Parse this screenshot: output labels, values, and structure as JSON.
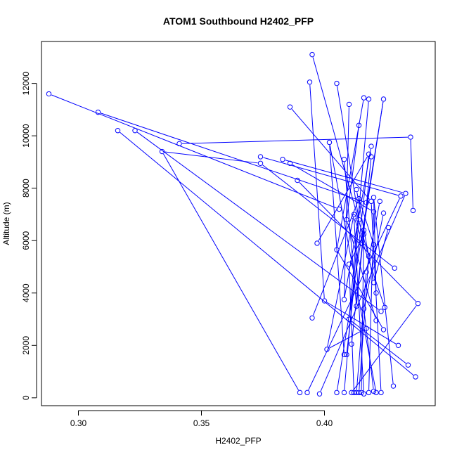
{
  "chart_data": {
    "type": "line",
    "title": "ATOM1 Southbound H2402_PFP",
    "xlabel": "H2402_PFP",
    "ylabel": "Altitude (m)",
    "xlim": [
      0.285,
      0.445
    ],
    "ylim": [
      -300,
      13600
    ],
    "xticks": [
      0.3,
      0.35,
      0.4
    ],
    "xtick_labels": [
      "0.30",
      "0.35",
      "0.40"
    ],
    "yticks": [
      0,
      2000,
      4000,
      6000,
      8000,
      10000,
      12000
    ],
    "ytick_labels": [
      "0",
      "2000",
      "4000",
      "6000",
      "8000",
      "10000",
      "12000"
    ],
    "grid": false,
    "legend": "none",
    "line_color": "#0000ff",
    "marker": "open-circle",
    "series": [
      {
        "x": [
          0.39,
          0.334,
          0.374,
          0.4285
        ],
        "y": [
          200,
          9400,
          8950,
          4950
        ]
      },
      {
        "x": [
          0.288,
          0.406
        ],
        "y": [
          11600,
          7200
        ]
      },
      {
        "x": [
          0.308,
          0.417
        ],
        "y": [
          10900,
          7450
        ]
      },
      {
        "x": [
          0.316,
          0.437
        ],
        "y": [
          10200,
          800
        ]
      },
      {
        "x": [
          0.323,
          0.423
        ],
        "y": [
          10200,
          3300
        ]
      },
      {
        "x": [
          0.341,
          0.435,
          0.436
        ],
        "y": [
          9700,
          9950,
          7150
        ]
      },
      {
        "x": [
          0.374,
          0.431,
          0.393
        ],
        "y": [
          9200,
          7700,
          200
        ]
      },
      {
        "x": [
          0.383,
          0.433,
          0.398
        ],
        "y": [
          9100,
          7800,
          150
        ]
      },
      {
        "x": [
          0.386,
          0.42,
          0.418
        ],
        "y": [
          8950,
          7100,
          200
        ]
      },
      {
        "x": [
          0.386,
          0.419,
          0.423
        ],
        "y": [
          11100,
          7500,
          200
        ]
      },
      {
        "x": [
          0.389,
          0.438,
          0.411
        ],
        "y": [
          8300,
          3600,
          200
        ]
      },
      {
        "x": [
          0.395,
          0.418,
          0.414
        ],
        "y": [
          13100,
          5400,
          200
        ]
      },
      {
        "x": [
          0.394,
          0.4,
          0.43
        ],
        "y": [
          12050,
          3700,
          2000
        ]
      },
      {
        "x": [
          0.405,
          0.414,
          0.408
        ],
        "y": [
          12000,
          6800,
          200
        ]
      },
      {
        "x": [
          0.408,
          0.402,
          0.421
        ],
        "y": [
          1650,
          9750,
          200
        ]
      },
      {
        "x": [
          0.416,
          0.405,
          0.424
        ],
        "y": [
          11450,
          5650,
          2600
        ]
      },
      {
        "x": [
          0.418,
          0.41,
          0.434
        ],
        "y": [
          11400,
          3000,
          1250
        ]
      },
      {
        "x": [
          0.41,
          0.408,
          0.419
        ],
        "y": [
          11200,
          3750,
          9600
        ]
      },
      {
        "x": [
          0.414,
          0.409,
          0.421
        ],
        "y": [
          10400,
          6800,
          2950
        ]
      },
      {
        "x": [
          0.408,
          0.413,
          0.419
        ],
        "y": [
          9100,
          3500,
          9200
        ]
      },
      {
        "x": [
          0.413,
          0.42,
          0.426
        ],
        "y": [
          7950,
          4400,
          6500
        ]
      },
      {
        "x": [
          0.395,
          0.414,
          0.42
        ],
        "y": [
          3050,
          7600,
          5850
        ]
      },
      {
        "x": [
          0.411,
          0.416,
          0.415
        ],
        "y": [
          2050,
          6400,
          200
        ]
      },
      {
        "x": [
          0.421,
          0.42,
          0.428
        ],
        "y": [
          4000,
          7650,
          450
        ]
      },
      {
        "x": [
          0.416,
          0.41,
          0.412
        ],
        "y": [
          6250,
          5100,
          200
        ]
      },
      {
        "x": [
          0.397,
          0.418,
          0.409
        ],
        "y": [
          5900,
          9300,
          1650
        ]
      },
      {
        "x": [
          0.424,
          0.416,
          0.42
        ],
        "y": [
          7050,
          3400,
          250
        ]
      },
      {
        "x": [
          0.4225,
          0.417,
          0.413
        ],
        "y": [
          7500,
          4800,
          200
        ]
      },
      {
        "x": [
          0.4245,
          0.412,
          0.416
        ],
        "y": [
          3450,
          6900,
          150
        ]
      },
      {
        "x": [
          0.415,
          0.424,
          0.405
        ],
        "y": [
          5900,
          11400,
          200
        ]
      },
      {
        "x": [
          0.412,
          0.401,
          0.417
        ],
        "y": [
          7000,
          1850,
          2650
        ]
      }
    ]
  }
}
